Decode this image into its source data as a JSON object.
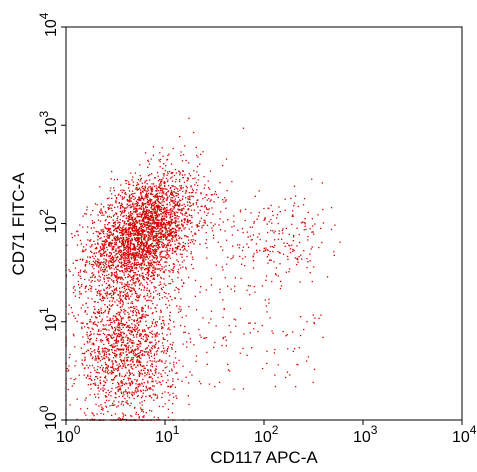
{
  "chart_data": {
    "type": "scatter",
    "title": "",
    "xlabel": "CD117 APC-A",
    "ylabel": "CD71 FITC-A",
    "x_scale": "log",
    "y_scale": "log",
    "xlim": [
      1,
      10000
    ],
    "ylim": [
      1,
      10000
    ],
    "grid": false,
    "x_ticks": [
      {
        "base": "10",
        "exp": "0"
      },
      {
        "base": "10",
        "exp": "1"
      },
      {
        "base": "10",
        "exp": "2"
      },
      {
        "base": "10",
        "exp": "3"
      },
      {
        "base": "10",
        "exp": "4"
      }
    ],
    "y_ticks": [
      {
        "base": "10",
        "exp": "0"
      },
      {
        "base": "10",
        "exp": "1"
      },
      {
        "base": "10",
        "exp": "2"
      },
      {
        "base": "10",
        "exp": "3"
      },
      {
        "base": "10",
        "exp": "4"
      }
    ],
    "point_color": "#d40000",
    "series": [
      {
        "name": "",
        "description": "dense population",
        "center": [
          6,
          80
        ],
        "spread_decades": [
          0.28,
          0.28
        ],
        "count": 3000
      },
      {
        "name": "",
        "description": "low CD71 tail",
        "center": [
          4,
          5
        ],
        "spread_decades": [
          0.25,
          0.4
        ],
        "count": 1600
      },
      {
        "name": "",
        "description": "CD117+ cluster",
        "center": [
          120,
          70
        ],
        "spread_decades": [
          0.3,
          0.22
        ],
        "count": 180
      },
      {
        "name": "",
        "description": "sparse scatter",
        "xlim": [
          10,
          400
        ],
        "ylim": [
          2,
          200
        ],
        "count": 250
      }
    ]
  }
}
